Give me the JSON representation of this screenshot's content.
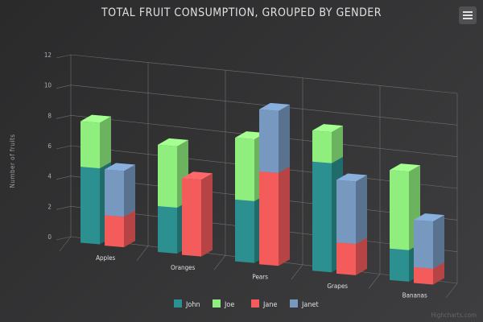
{
  "title": "TOTAL FRUIT CONSUMPTION, GROUPED BY GENDER",
  "credits": "Highcharts.com",
  "menu_icon": "hamburger-menu-icon",
  "chart_data": {
    "type": "bar",
    "title": "TOTAL FRUIT CONSUMPTION, GROUPED BY GENDER",
    "ylabel": "Number of fruits",
    "xlabel": "",
    "ylim": [
      0,
      12
    ],
    "yticks": [
      0,
      2,
      4,
      6,
      8,
      10,
      12
    ],
    "categories": [
      "Apples",
      "Oranges",
      "Pears",
      "Grapes",
      "Bananas"
    ],
    "stacked": true,
    "threeD": true,
    "grid": true,
    "legend_position": "bottom",
    "series": [
      {
        "name": "John",
        "stack": "male",
        "color": "#2b908f",
        "values": [
          5,
          3,
          4,
          7,
          2
        ]
      },
      {
        "name": "Joe",
        "stack": "male",
        "color": "#90ee7e",
        "values": [
          3,
          4,
          4,
          2,
          5
        ]
      },
      {
        "name": "Jane",
        "stack": "female",
        "color": "#f45b5b",
        "values": [
          2,
          5,
          6,
          2,
          1
        ]
      },
      {
        "name": "Janet",
        "stack": "female",
        "color": "#7798bf",
        "values": [
          3,
          0,
          4,
          4,
          3
        ]
      }
    ]
  }
}
